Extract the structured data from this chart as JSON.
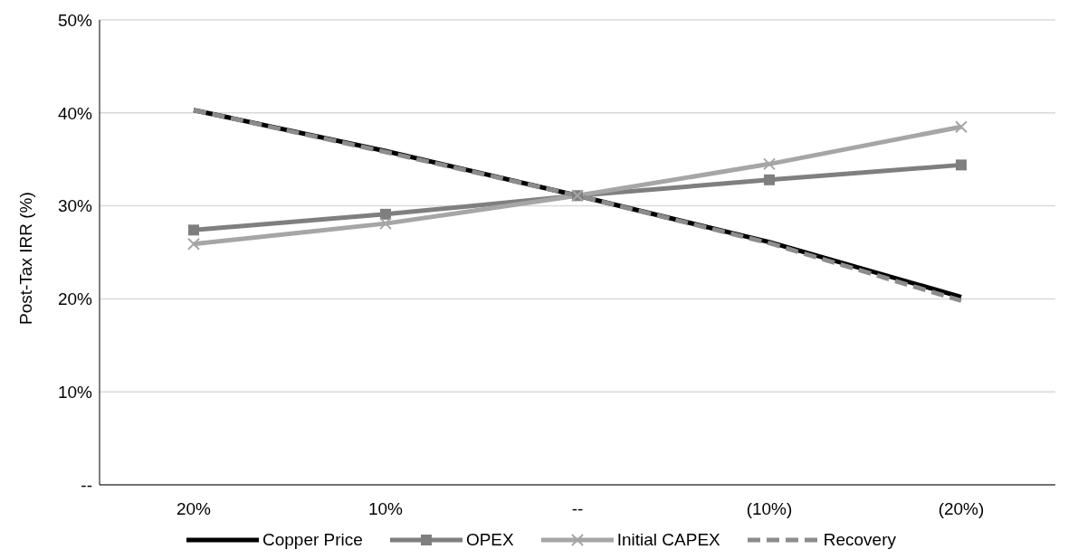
{
  "chart_data": {
    "type": "line",
    "ylabel": "Post-Tax IRR (%)",
    "categories": [
      "20%",
      "10%",
      "--",
      "(10%)",
      "(20%)"
    ],
    "series": [
      {
        "name": "Copper Price",
        "color": "#000000",
        "marker": "none",
        "line_style": "solid",
        "values": [
          40.3,
          35.9,
          31.1,
          26.1,
          20.2
        ]
      },
      {
        "name": "OPEX",
        "color": "#7f7f7f",
        "marker": "square",
        "line_style": "solid",
        "values": [
          27.4,
          29.1,
          31.1,
          32.8,
          34.4
        ]
      },
      {
        "name": "Initial CAPEX",
        "color": "#a6a6a6",
        "marker": "cross",
        "line_style": "solid",
        "values": [
          25.9,
          28.1,
          31.1,
          34.5,
          38.5
        ]
      },
      {
        "name": "Recovery",
        "color": "#8c8c8c",
        "marker": "none",
        "line_style": "dashed",
        "values": [
          40.3,
          35.8,
          31.1,
          26.0,
          19.8
        ]
      }
    ],
    "ylim": [
      0,
      50
    ],
    "yticks": [
      {
        "value": 0,
        "label": "--"
      },
      {
        "value": 10,
        "label": "10%"
      },
      {
        "value": 20,
        "label": "20%"
      },
      {
        "value": 30,
        "label": "30%"
      },
      {
        "value": 40,
        "label": "40%"
      },
      {
        "value": 50,
        "label": "50%"
      }
    ],
    "grid": "y",
    "legend": "bottom"
  }
}
